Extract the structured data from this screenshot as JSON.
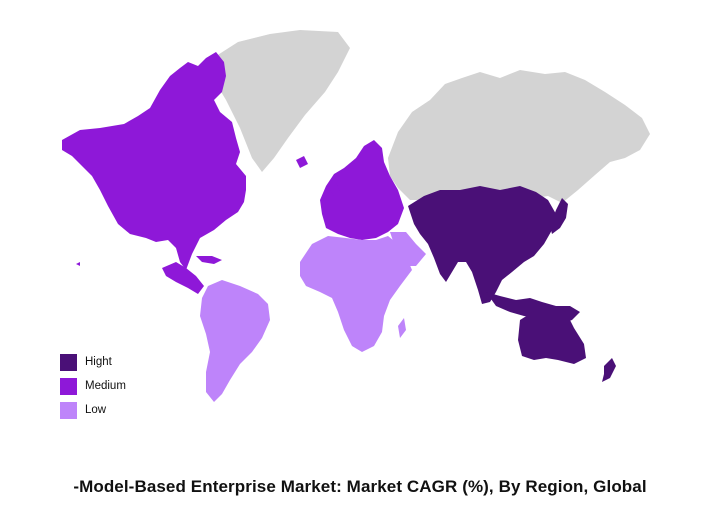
{
  "title": "-Model-Based Enterprise Market: Market CAGR (%), By Region, Global",
  "legend": [
    {
      "key": "high",
      "label": "Hight",
      "color": "#4a1077"
    },
    {
      "key": "medium",
      "label": "Medium",
      "color": "#8e18d8"
    },
    {
      "key": "low",
      "label": "Low",
      "color": "#be84fa"
    }
  ],
  "no_data_color": "#d3d3d3",
  "regions": [
    {
      "name": "North America",
      "level": "medium"
    },
    {
      "name": "Europe",
      "level": "medium"
    },
    {
      "name": "Asia-Pacific",
      "level": "high"
    },
    {
      "name": "South America",
      "level": "low"
    },
    {
      "name": "Middle East & Africa",
      "level": "low"
    },
    {
      "name": "Greenland",
      "level": "none"
    },
    {
      "name": "Russia & Central Asia",
      "level": "none"
    }
  ]
}
